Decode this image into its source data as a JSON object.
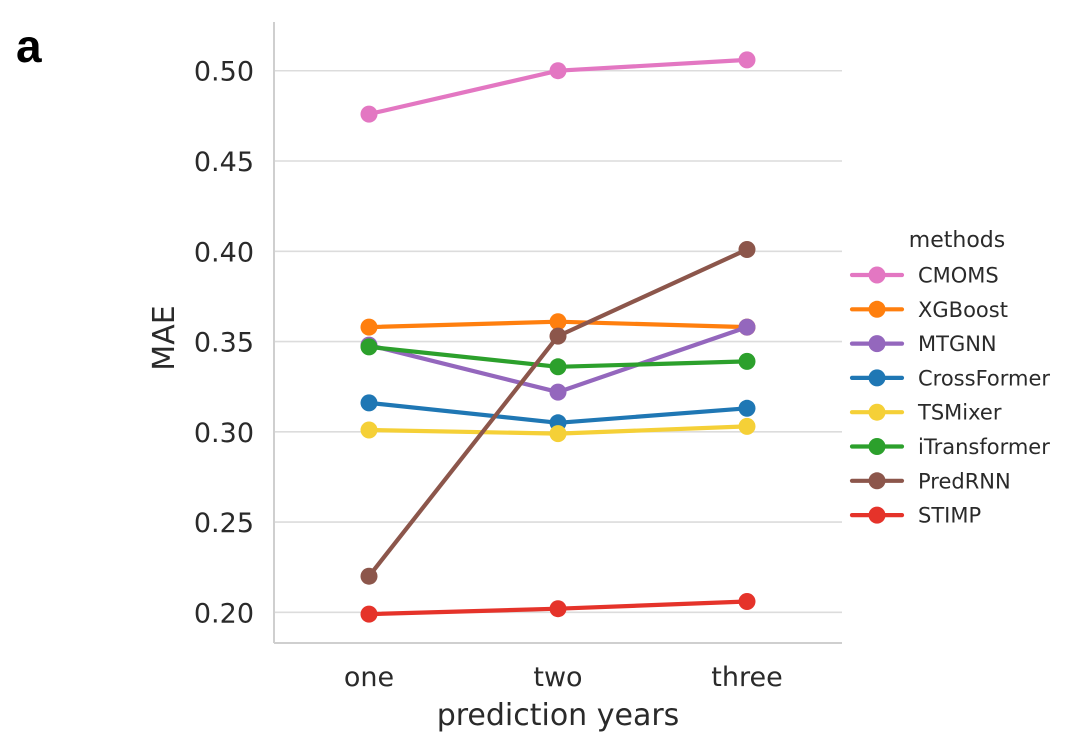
{
  "panel_label": "a",
  "chart_data": {
    "type": "line",
    "xlabel": "prediction years",
    "ylabel": "MAE",
    "categories": [
      "one",
      "two",
      "three"
    ],
    "ylim": [
      0.183,
      0.527
    ],
    "yticks": [
      "0.20",
      "0.25",
      "0.30",
      "0.35",
      "0.40",
      "0.45",
      "0.50"
    ],
    "ytick_values": [
      0.2,
      0.25,
      0.3,
      0.35,
      0.4,
      0.45,
      0.5
    ],
    "grid": "horizontal",
    "legend_title": "methods",
    "legend_placement": "right",
    "series": [
      {
        "name": "CMOMS",
        "color": "#e377c2",
        "values": [
          0.476,
          0.5,
          0.506
        ]
      },
      {
        "name": "XGBoost",
        "color": "#ff7f0e",
        "values": [
          0.358,
          0.361,
          0.358
        ]
      },
      {
        "name": "MTGNN",
        "color": "#9467bd",
        "values": [
          0.348,
          0.322,
          0.358
        ]
      },
      {
        "name": "CrossFormer",
        "color": "#1f77b4",
        "values": [
          0.316,
          0.305,
          0.313
        ]
      },
      {
        "name": "TSMixer",
        "color": "#f5d037",
        "values": [
          0.301,
          0.299,
          0.303
        ]
      },
      {
        "name": "iTransformer",
        "color": "#2ca02c",
        "values": [
          0.347,
          0.336,
          0.339
        ]
      },
      {
        "name": "PredRNN",
        "color": "#8c564b",
        "values": [
          0.22,
          0.353,
          0.401
        ]
      },
      {
        "name": "STIMP",
        "color": "#e5332a",
        "values": [
          0.199,
          0.202,
          0.206
        ]
      }
    ]
  }
}
